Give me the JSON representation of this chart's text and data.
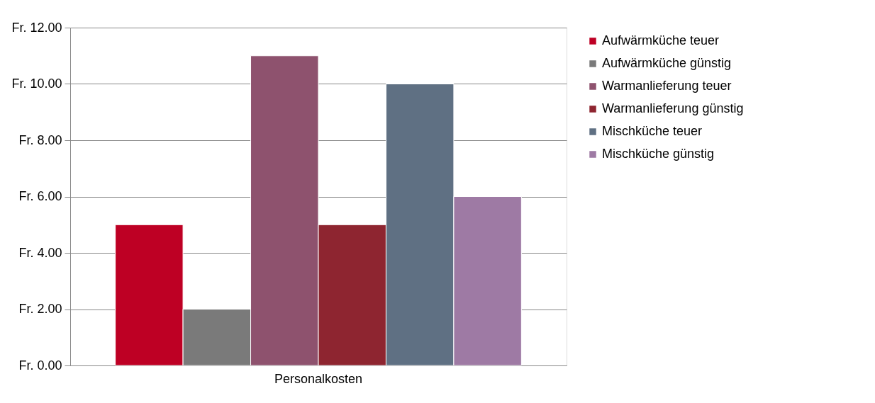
{
  "chart_data": {
    "type": "bar",
    "categories": [
      "Personalkosten"
    ],
    "series": [
      {
        "name": "Aufwärmküche teuer",
        "color": "#be0024",
        "values": [
          5
        ]
      },
      {
        "name": "Aufwärmküche günstig",
        "color": "#7a7a7a",
        "values": [
          2
        ]
      },
      {
        "name": "Warmanlieferung teuer",
        "color": "#8e526e",
        "values": [
          11
        ]
      },
      {
        "name": "Warmanlieferung günstig",
        "color": "#8e2530",
        "values": [
          5
        ]
      },
      {
        "name": "Mischküche teuer",
        "color": "#5f7083",
        "values": [
          10
        ]
      },
      {
        "name": "Mischküche günstig",
        "color": "#9e7aa4",
        "values": [
          6
        ]
      }
    ],
    "ylim": [
      0,
      12
    ],
    "yticks": [
      {
        "value": 0,
        "label": "Fr. 0.00"
      },
      {
        "value": 2,
        "label": "Fr. 2.00"
      },
      {
        "value": 4,
        "label": "Fr. 4.00"
      },
      {
        "value": 6,
        "label": "Fr. 6.00"
      },
      {
        "value": 8,
        "label": "Fr. 8.00"
      },
      {
        "value": 10,
        "label": "Fr. 10.00"
      },
      {
        "value": 12,
        "label": "Fr. 12.00"
      }
    ],
    "grid": "y",
    "legend": "right"
  }
}
